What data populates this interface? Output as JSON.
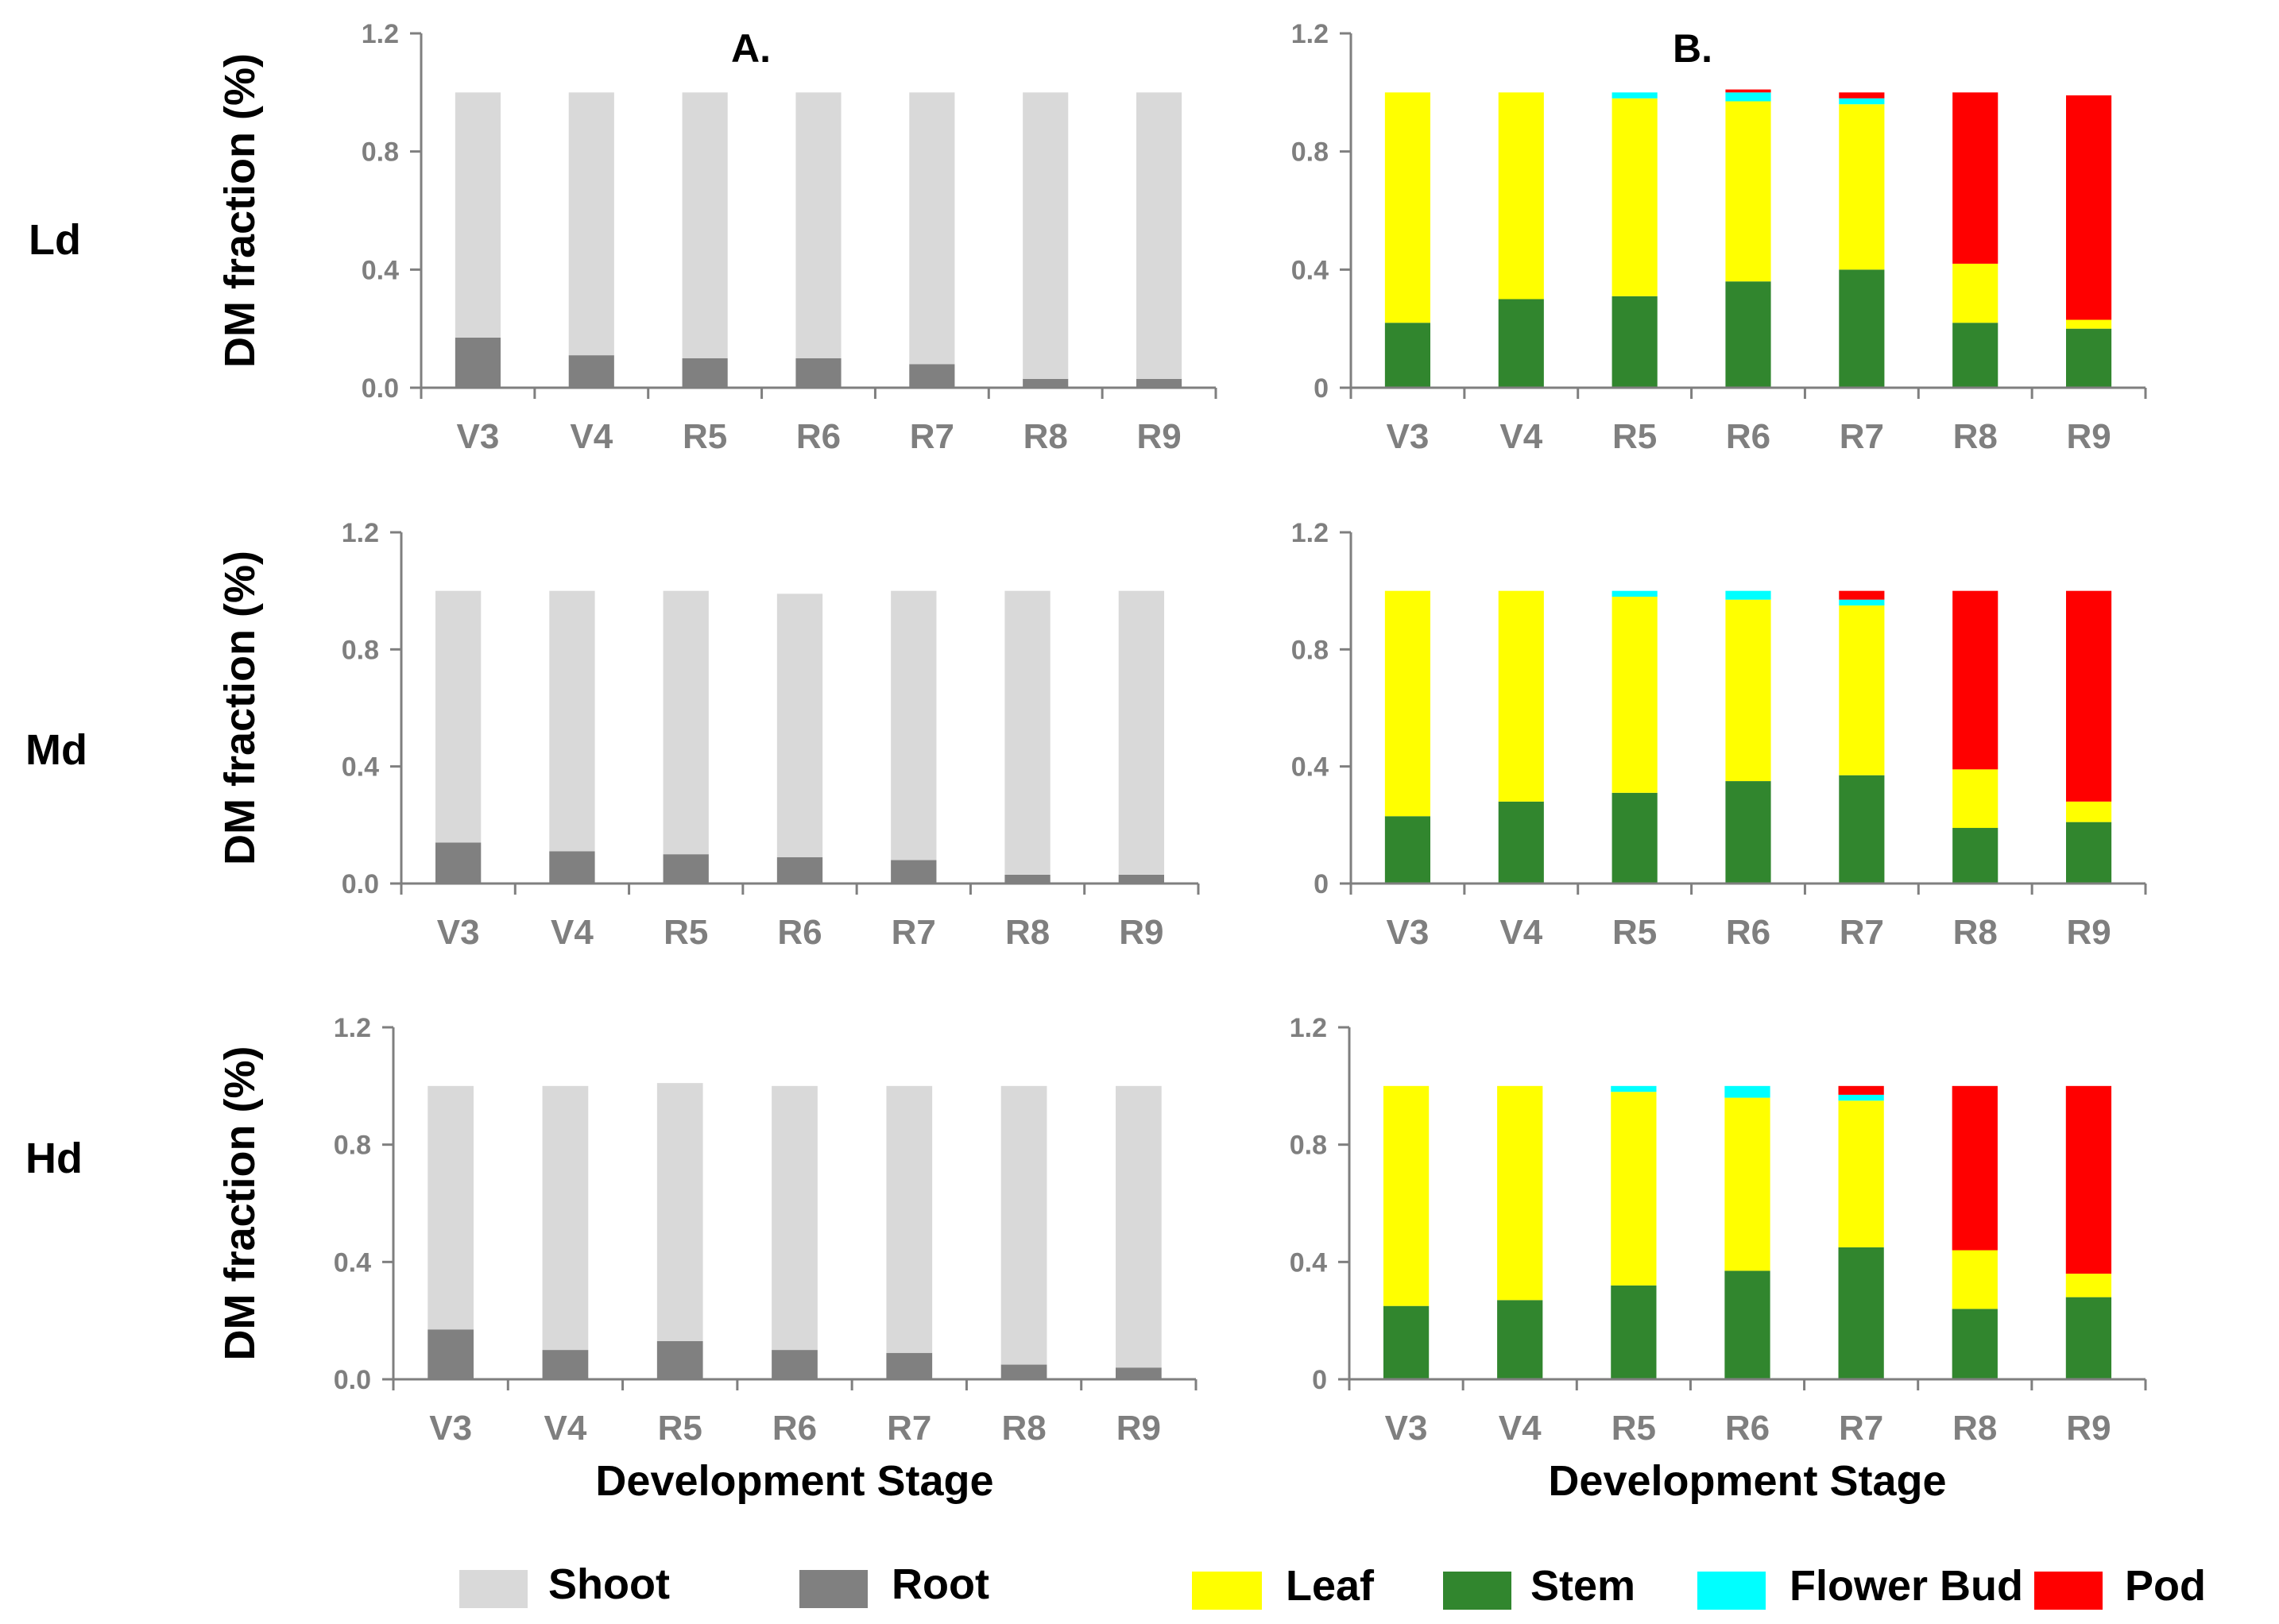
{
  "rows": [
    {
      "label": "Ld"
    },
    {
      "label": "Md"
    },
    {
      "label": "Hd"
    }
  ],
  "legend": {
    "a": [
      {
        "name": "Shoot",
        "color": "#d9d9d9"
      },
      {
        "name": "Root",
        "color": "#808080"
      }
    ],
    "b": [
      {
        "name": "Leaf",
        "color": "#ffff00"
      },
      {
        "name": "Stem",
        "color": "#31862e"
      },
      {
        "name": "Flower Bud",
        "color": "#00ffff"
      },
      {
        "name": "Pod",
        "color": "#ff0000"
      }
    ]
  },
  "chart_data": [
    {
      "id": "A-Ld",
      "panel_label": "A.",
      "type": "bar",
      "stacked": true,
      "ylabel": "DM fraction (%)",
      "xlabel": "",
      "yticks": [
        "0.0",
        "0.4",
        "0.8",
        "1.2"
      ],
      "ylim": [
        0,
        1.2
      ],
      "categories": [
        "V3",
        "V4",
        "R5",
        "R6",
        "R7",
        "R8",
        "R9"
      ],
      "series": [
        {
          "name": "Root",
          "color": "#808080",
          "values": [
            0.17,
            0.11,
            0.1,
            0.1,
            0.08,
            0.03,
            0.03
          ]
        },
        {
          "name": "Shoot",
          "color": "#d9d9d9",
          "values": [
            0.83,
            0.89,
            0.9,
            0.9,
            0.92,
            0.97,
            0.97
          ]
        }
      ]
    },
    {
      "id": "B-Ld",
      "panel_label": "B.",
      "type": "bar",
      "stacked": true,
      "ylabel": "",
      "xlabel": "",
      "yticks": [
        "0",
        "0.4",
        "0.8",
        "1.2"
      ],
      "ylim": [
        0,
        1.2
      ],
      "categories": [
        "V3",
        "V4",
        "R5",
        "R6",
        "R7",
        "R8",
        "R9"
      ],
      "series": [
        {
          "name": "Stem",
          "color": "#31862e",
          "values": [
            0.22,
            0.3,
            0.31,
            0.36,
            0.4,
            0.22,
            0.2
          ]
        },
        {
          "name": "Leaf",
          "color": "#ffff00",
          "values": [
            0.78,
            0.7,
            0.67,
            0.61,
            0.56,
            0.2,
            0.03
          ]
        },
        {
          "name": "Flower Bud",
          "color": "#00ffff",
          "values": [
            0.0,
            0.0,
            0.02,
            0.03,
            0.02,
            0.0,
            0.0
          ]
        },
        {
          "name": "Pod",
          "color": "#ff0000",
          "values": [
            0.0,
            0.0,
            0.0,
            0.01,
            0.02,
            0.58,
            0.76
          ]
        }
      ]
    },
    {
      "id": "A-Md",
      "panel_label": "",
      "type": "bar",
      "stacked": true,
      "ylabel": "DM fraction (%)",
      "xlabel": "",
      "yticks": [
        "0.0",
        "0.4",
        "0.8",
        "1.2"
      ],
      "ylim": [
        0,
        1.2
      ],
      "categories": [
        "V3",
        "V4",
        "R5",
        "R6",
        "R7",
        "R8",
        "R9"
      ],
      "series": [
        {
          "name": "Root",
          "color": "#808080",
          "values": [
            0.14,
            0.11,
            0.1,
            0.09,
            0.08,
            0.03,
            0.03
          ]
        },
        {
          "name": "Shoot",
          "color": "#d9d9d9",
          "values": [
            0.86,
            0.89,
            0.9,
            0.9,
            0.92,
            0.97,
            0.97
          ]
        }
      ]
    },
    {
      "id": "B-Md",
      "panel_label": "",
      "type": "bar",
      "stacked": true,
      "ylabel": "",
      "xlabel": "",
      "yticks": [
        "0",
        "0.4",
        "0.8",
        "1.2"
      ],
      "ylim": [
        0,
        1.2
      ],
      "categories": [
        "V3",
        "V4",
        "R5",
        "R6",
        "R7",
        "R8",
        "R9"
      ],
      "series": [
        {
          "name": "Stem",
          "color": "#31862e",
          "values": [
            0.23,
            0.28,
            0.31,
            0.35,
            0.37,
            0.19,
            0.21
          ]
        },
        {
          "name": "Leaf",
          "color": "#ffff00",
          "values": [
            0.77,
            0.72,
            0.67,
            0.62,
            0.58,
            0.2,
            0.07
          ]
        },
        {
          "name": "Flower Bud",
          "color": "#00ffff",
          "values": [
            0.0,
            0.0,
            0.02,
            0.03,
            0.02,
            0.0,
            0.0
          ]
        },
        {
          "name": "Pod",
          "color": "#ff0000",
          "values": [
            0.0,
            0.0,
            0.0,
            0.0,
            0.03,
            0.61,
            0.72
          ]
        }
      ]
    },
    {
      "id": "A-Hd",
      "panel_label": "",
      "type": "bar",
      "stacked": true,
      "ylabel": "DM fraction (%)",
      "xlabel": "Development Stage",
      "yticks": [
        "0.0",
        "0.4",
        "0.8",
        "1.2"
      ],
      "ylim": [
        0,
        1.2
      ],
      "categories": [
        "V3",
        "V4",
        "R5",
        "R6",
        "R7",
        "R8",
        "R9"
      ],
      "series": [
        {
          "name": "Root",
          "color": "#808080",
          "values": [
            0.17,
            0.1,
            0.13,
            0.1,
            0.09,
            0.05,
            0.04
          ]
        },
        {
          "name": "Shoot",
          "color": "#d9d9d9",
          "values": [
            0.83,
            0.9,
            0.88,
            0.9,
            0.91,
            0.95,
            0.96
          ]
        }
      ]
    },
    {
      "id": "B-Hd",
      "panel_label": "",
      "type": "bar",
      "stacked": true,
      "ylabel": "",
      "xlabel": "Development Stage",
      "yticks": [
        "0",
        "0.4",
        "0.8",
        "1.2"
      ],
      "ylim": [
        0,
        1.2
      ],
      "categories": [
        "V3",
        "V4",
        "R5",
        "R6",
        "R7",
        "R8",
        "R9"
      ],
      "series": [
        {
          "name": "Stem",
          "color": "#31862e",
          "values": [
            0.25,
            0.27,
            0.32,
            0.37,
            0.45,
            0.24,
            0.28
          ]
        },
        {
          "name": "Leaf",
          "color": "#ffff00",
          "values": [
            0.75,
            0.73,
            0.66,
            0.59,
            0.5,
            0.2,
            0.08
          ]
        },
        {
          "name": "Flower Bud",
          "color": "#00ffff",
          "values": [
            0.0,
            0.0,
            0.02,
            0.04,
            0.02,
            0.0,
            0.0
          ]
        },
        {
          "name": "Pod",
          "color": "#ff0000",
          "values": [
            0.0,
            0.0,
            0.0,
            0.0,
            0.03,
            0.56,
            0.64
          ]
        }
      ]
    }
  ]
}
